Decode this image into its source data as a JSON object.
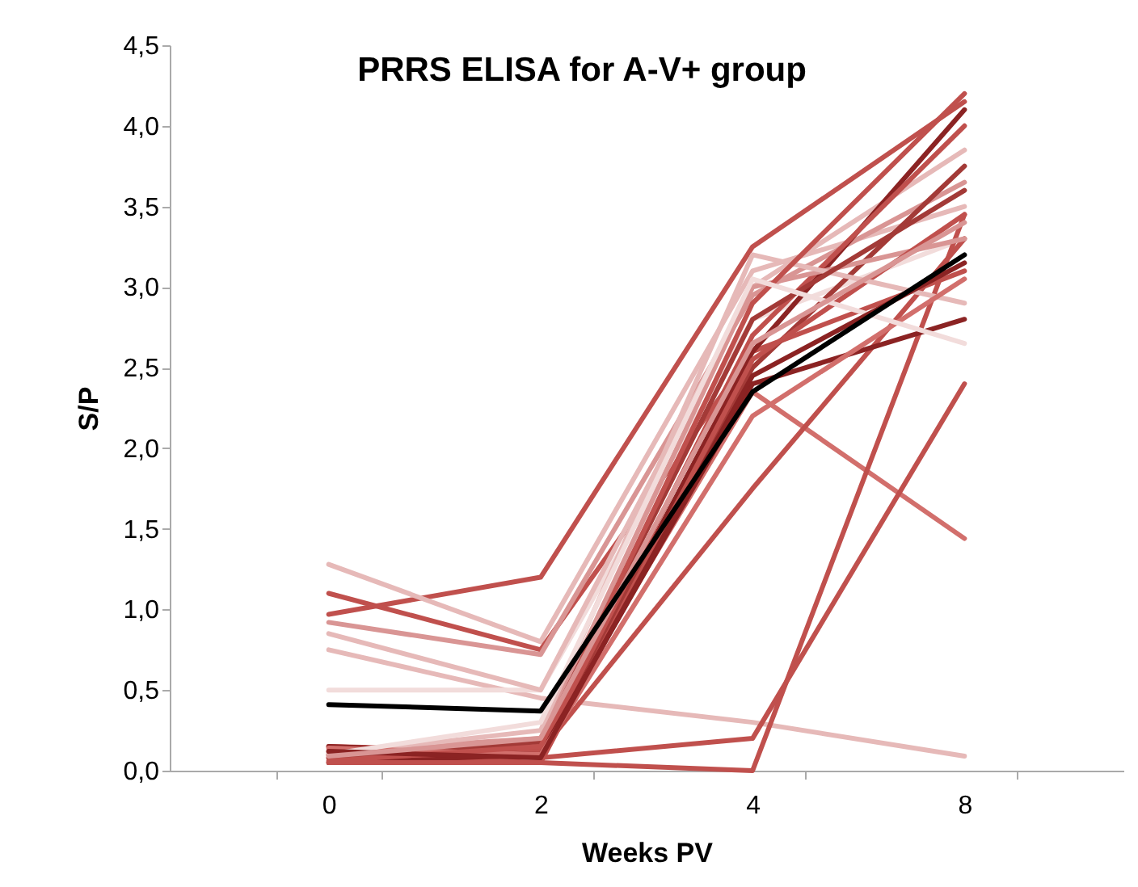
{
  "chart_data": {
    "type": "line",
    "title": "PRRS ELISA for A-V+ group",
    "xlabel": "Weeks PV",
    "ylabel": "S/P",
    "categories": [
      "0",
      "2",
      "4",
      "8"
    ],
    "ylim": [
      0,
      4.5
    ],
    "yticks": [
      {
        "value": 0,
        "label": "0,0"
      },
      {
        "value": 0.5,
        "label": "0,5"
      },
      {
        "value": 1,
        "label": "1,0"
      },
      {
        "value": 1.5,
        "label": "1,5"
      },
      {
        "value": 2,
        "label": "2,0"
      },
      {
        "value": 2.5,
        "label": "2,5"
      },
      {
        "value": 3,
        "label": "3,0"
      },
      {
        "value": 3.5,
        "label": "3,5"
      },
      {
        "value": 4,
        "label": "4,0"
      },
      {
        "value": 4.5,
        "label": "4,5"
      }
    ],
    "grid": false,
    "legend": false,
    "marker": "none",
    "line_style": "solid",
    "series": [
      {
        "color": "#c0504d",
        "values": [
          0.97,
          1.2,
          3.25,
          4.15
        ]
      },
      {
        "color": "#e6b9b8",
        "values": [
          1.28,
          0.8,
          3.1,
          3.5
        ]
      },
      {
        "color": "#c0504d",
        "values": [
          1.1,
          0.75,
          2.6,
          3.1
        ]
      },
      {
        "color": "#d99594",
        "values": [
          0.92,
          0.72,
          2.95,
          3.65
        ]
      },
      {
        "color": "#e6b9b8",
        "values": [
          0.75,
          0.45,
          0.3,
          0.09
        ]
      },
      {
        "color": "#f2dcdb",
        "values": [
          0.5,
          0.5,
          2.8,
          3.3
        ]
      },
      {
        "color": "#e6b9b8",
        "values": [
          0.85,
          0.5,
          3.0,
          3.85
        ]
      },
      {
        "color": "#d26f6c",
        "values": [
          0.1,
          0.15,
          2.35,
          1.44
        ]
      },
      {
        "color": "#c0504d",
        "values": [
          0.1,
          0.05,
          0.0,
          3.45
        ]
      },
      {
        "color": "#c0504d",
        "values": [
          0.12,
          0.08,
          0.2,
          2.4
        ]
      },
      {
        "color": "#c0504d",
        "values": [
          0.15,
          0.12,
          1.75,
          3.3
        ]
      },
      {
        "color": "#8b2323",
        "values": [
          0.05,
          0.1,
          2.6,
          4.1
        ]
      },
      {
        "color": "#a33a37",
        "values": [
          0.1,
          0.15,
          2.5,
          3.75
        ]
      },
      {
        "color": "#c0504d",
        "values": [
          0.08,
          0.12,
          2.7,
          4.0
        ]
      },
      {
        "color": "#d99594",
        "values": [
          0.12,
          0.2,
          3.0,
          3.3
        ]
      },
      {
        "color": "#8b2323",
        "values": [
          0.15,
          0.1,
          2.4,
          2.8
        ]
      },
      {
        "color": "#c0504d",
        "values": [
          0.05,
          0.05,
          2.55,
          3.45
        ]
      },
      {
        "color": "#e6b9b8",
        "values": [
          0.1,
          0.25,
          3.2,
          2.9
        ]
      },
      {
        "color": "#a33a37",
        "values": [
          0.08,
          0.18,
          2.8,
          3.6
        ]
      },
      {
        "color": "#d26f6c",
        "values": [
          0.14,
          0.1,
          2.2,
          3.05
        ]
      },
      {
        "color": "#c0504d",
        "values": [
          0.06,
          0.15,
          2.9,
          4.2
        ]
      },
      {
        "color": "#f2dcdb",
        "values": [
          0.1,
          0.3,
          3.05,
          2.65
        ]
      },
      {
        "color": "#8b2323",
        "values": [
          0.12,
          0.08,
          2.45,
          3.15
        ]
      },
      {
        "color": "#d99594",
        "values": [
          0.09,
          0.2,
          2.65,
          3.4
        ]
      },
      {
        "color": "#000000",
        "values": [
          0.41,
          0.37,
          2.35,
          3.2
        ]
      }
    ]
  }
}
